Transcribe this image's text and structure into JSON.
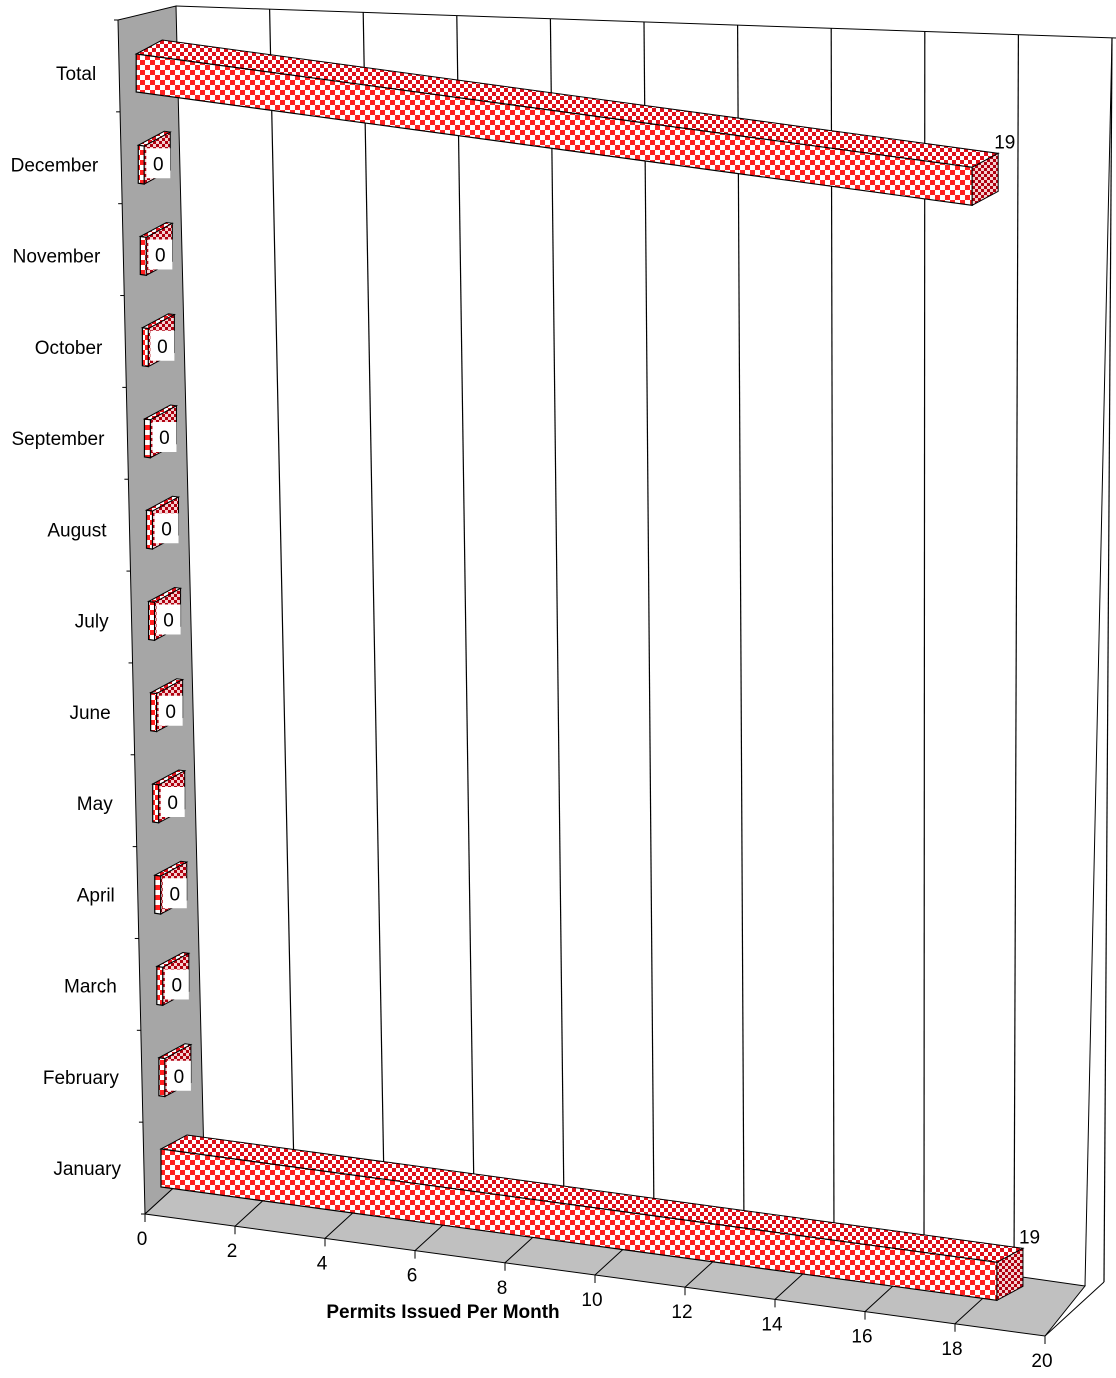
{
  "chart_data": {
    "type": "bar",
    "orientation": "horizontal",
    "style": "3d",
    "title": "",
    "xlabel": "Permits Issued Per Month",
    "ylabel": "",
    "categories": [
      "January",
      "February",
      "March",
      "April",
      "May",
      "June",
      "July",
      "August",
      "September",
      "October",
      "November",
      "December",
      "Total"
    ],
    "values": [
      19,
      0,
      0,
      0,
      0,
      0,
      0,
      0,
      0,
      0,
      0,
      0,
      19
    ],
    "xlim": [
      0,
      20
    ],
    "xticks": [
      "0",
      "2",
      "4",
      "6",
      "8",
      "10",
      "12",
      "14",
      "16",
      "18",
      "20"
    ],
    "data_labels": [
      "19",
      "0",
      "0",
      "0",
      "0",
      "0",
      "0",
      "0",
      "0",
      "0",
      "0",
      "0",
      "19"
    ],
    "grid": true,
    "legend": "none",
    "colors": {
      "bar_primary": "#ff2020",
      "bar_secondary": "#ffffff",
      "bar_edge": "#000000",
      "side_wall": "#a6a6a6",
      "floor": "#c0c0c0",
      "grid_line": "#000000"
    }
  }
}
